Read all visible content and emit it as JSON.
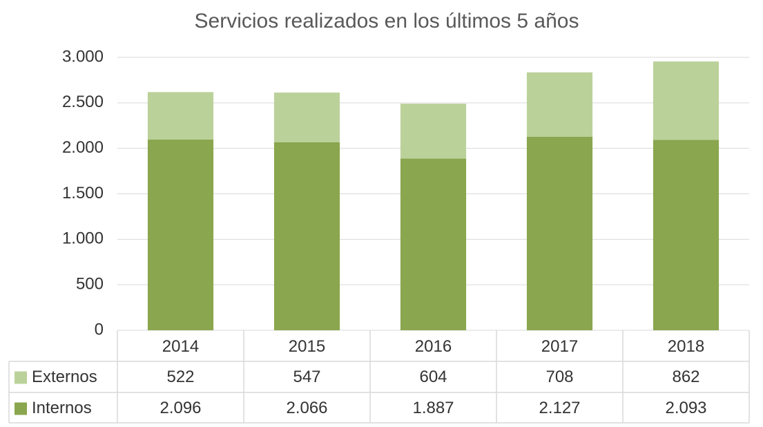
{
  "chart_data": {
    "type": "bar",
    "stacked": true,
    "title": "Servicios realizados en los últimos 5 años",
    "categories": [
      "2014",
      "2015",
      "2016",
      "2017",
      "2018"
    ],
    "series": [
      {
        "name": "Internos",
        "color": "#8aa64e",
        "values": [
          2096,
          2066,
          1887,
          2127,
          2093
        ],
        "value_labels": [
          "2.096",
          "2.066",
          "1.887",
          "2.127",
          "2.093"
        ]
      },
      {
        "name": "Externos",
        "color": "#bbd19a",
        "values": [
          522,
          547,
          604,
          708,
          862
        ],
        "value_labels": [
          "522",
          "547",
          "604",
          "708",
          "862"
        ]
      }
    ],
    "ylim": [
      0,
      3000
    ],
    "yticks": [
      0,
      500,
      {
        "value": 1000,
        "label": "1.000"
      },
      {
        "value": 1500,
        "label": "1.500"
      },
      {
        "value": 2000,
        "label": "2.000"
      },
      {
        "value": 2500,
        "label": "2.500"
      },
      {
        "value": 3000,
        "label": "3.000"
      }
    ],
    "grid": true,
    "data_table": true
  }
}
